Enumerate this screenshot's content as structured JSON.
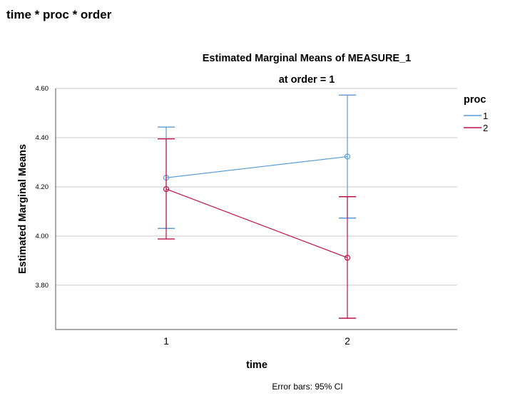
{
  "section_heading": "time * proc * order",
  "chart_data": {
    "type": "line",
    "title": "Estimated Marginal Means of MEASURE_1",
    "subtitle": "at order = 1",
    "xlabel": "time",
    "ylabel": "Estimated Marginal Means",
    "categories": [
      "1",
      "2"
    ],
    "ylim": [
      3.62,
      4.6
    ],
    "yticks": [
      3.8,
      4.0,
      4.2,
      4.4,
      4.6
    ],
    "ytick_labels": [
      "3.80",
      "4.00",
      "4.20",
      "4.40",
      "4.60"
    ],
    "grid": true,
    "legend": {
      "title": "proc",
      "placement": "right"
    },
    "series": [
      {
        "name": "1",
        "color": "#5b9bd5",
        "values": [
          4.237,
          4.323
        ],
        "ci_lower": [
          4.031,
          4.073
        ],
        "ci_upper": [
          4.443,
          4.573
        ]
      },
      {
        "name": "2",
        "color": "#c0104a",
        "values": [
          4.191,
          3.912
        ],
        "ci_lower": [
          3.988,
          3.666
        ],
        "ci_upper": [
          4.395,
          4.16
        ]
      }
    ],
    "footnote": "Error bars: 95% CI"
  }
}
